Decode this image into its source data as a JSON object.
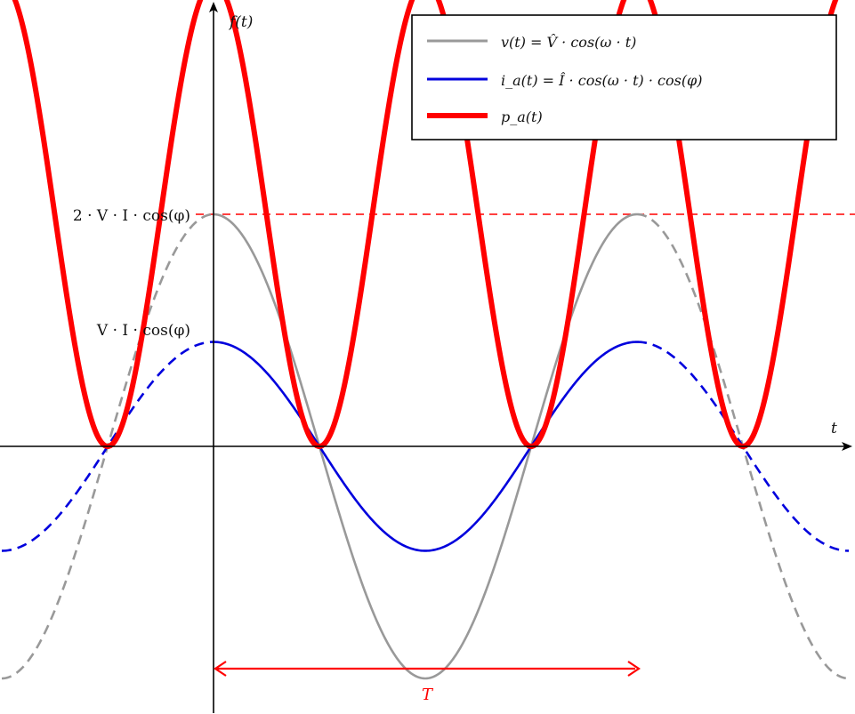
{
  "chart_data": {
    "type": "line",
    "title": "",
    "xlabel": "t",
    "ylabel": "f(t)",
    "x_unit": "omega*t in degrees (one grid unit = 90 deg)",
    "xlim": [
      -180,
      540
    ],
    "ylim": [
      -1.05,
      2.1
    ],
    "series": [
      {
        "name": "v(t) = V̂ · cos(ω · t)",
        "color": "#999999",
        "style": "solid inside one period, dashed outside",
        "solid_range": [
          0,
          360
        ],
        "amplitude": 1.0,
        "x": [
          -180,
          -135,
          -90,
          -45,
          0,
          45,
          90,
          135,
          180,
          225,
          270,
          315,
          360,
          405,
          450,
          495,
          540
        ],
        "values": [
          -1.0,
          -0.71,
          0.0,
          0.71,
          1.0,
          0.71,
          0.0,
          -0.71,
          -1.0,
          -0.71,
          0.0,
          0.71,
          1.0,
          0.71,
          0.0,
          -0.71,
          -1.0
        ]
      },
      {
        "name": "i_a(t) = Î · cos(ω · t) · cos(φ)",
        "color": "#0000dd",
        "style": "solid inside one period, dashed outside",
        "solid_range": [
          0,
          360
        ],
        "amplitude": 0.45,
        "x": [
          -180,
          -135,
          -90,
          -45,
          0,
          45,
          90,
          135,
          180,
          225,
          270,
          315,
          360,
          405,
          450,
          495,
          540
        ],
        "values": [
          -0.45,
          -0.32,
          0.0,
          0.32,
          0.45,
          0.32,
          0.0,
          -0.32,
          -0.45,
          -0.32,
          0.0,
          0.32,
          0.45,
          0.32,
          0.0,
          -0.32,
          -0.45
        ]
      },
      {
        "name": "p_a(t)",
        "color": "#ff0000",
        "style": "solid, thick",
        "solid_range": [
          -180,
          540
        ],
        "amplitude": 1.0,
        "offset": 1.0,
        "x": [
          -180,
          -135,
          -90,
          -45,
          0,
          45,
          90,
          135,
          180,
          225,
          270,
          315,
          360,
          405,
          450,
          495,
          540
        ],
        "values": [
          2.0,
          1.0,
          0.0,
          1.0,
          2.0,
          1.0,
          0.0,
          1.0,
          2.0,
          1.0,
          0.0,
          1.0,
          2.0,
          1.0,
          0.0,
          1.0,
          2.0
        ]
      }
    ],
    "reference_lines": [
      {
        "y": 2.0,
        "label": "2 · V · I · cos(φ)",
        "color": "#ff0000",
        "dashed": true
      },
      {
        "y": 1.0,
        "label": "V · I · cos(φ)",
        "color": "#ff0000",
        "dashed": true
      }
    ],
    "period_marker": {
      "x_start": 0,
      "x_end": 360,
      "label": "T",
      "color": "#ff0000"
    },
    "legend_position": "top-right",
    "grid": false
  }
}
